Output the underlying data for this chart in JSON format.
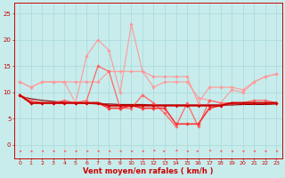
{
  "x": [
    0,
    1,
    2,
    3,
    4,
    5,
    6,
    7,
    8,
    9,
    10,
    11,
    12,
    13,
    14,
    15,
    16,
    17,
    18,
    19,
    20,
    21,
    22,
    23
  ],
  "series": [
    {
      "color": "#FF9999",
      "lw": 0.8,
      "marker": "D",
      "markersize": 1.8,
      "values": [
        12.0,
        11.0,
        12.0,
        12.0,
        12.0,
        12.0,
        12.0,
        12.0,
        14.0,
        14.0,
        14.0,
        14.0,
        13.0,
        13.0,
        13.0,
        13.0,
        8.0,
        11.0,
        11.0,
        11.0,
        10.5,
        12.0,
        13.0,
        13.5
      ]
    },
    {
      "color": "#FF9999",
      "lw": 0.8,
      "marker": "D",
      "markersize": 1.8,
      "values": [
        12.0,
        11.0,
        12.0,
        12.0,
        12.0,
        8.0,
        17.0,
        20.0,
        18.0,
        10.0,
        23.0,
        14.0,
        11.0,
        12.0,
        12.0,
        12.0,
        9.0,
        8.5,
        8.0,
        10.5,
        10.0,
        12.0,
        13.0,
        13.5
      ]
    },
    {
      "color": "#FF6666",
      "lw": 0.9,
      "marker": "D",
      "markersize": 1.8,
      "values": [
        9.5,
        8.5,
        8.0,
        8.0,
        8.5,
        8.0,
        8.5,
        15.0,
        14.0,
        7.0,
        7.0,
        9.5,
        8.0,
        6.0,
        3.5,
        8.0,
        3.5,
        8.5,
        8.0,
        8.0,
        8.0,
        8.5,
        8.5,
        8.0
      ]
    },
    {
      "color": "#FF3333",
      "lw": 1.2,
      "marker": "D",
      "markersize": 1.8,
      "values": [
        9.5,
        8.0,
        8.0,
        8.0,
        8.0,
        8.0,
        8.0,
        8.0,
        7.0,
        7.0,
        7.5,
        7.0,
        7.0,
        7.0,
        4.0,
        4.0,
        4.0,
        7.0,
        7.5,
        8.0,
        8.0,
        8.0,
        8.0,
        8.0
      ]
    },
    {
      "color": "#CC0000",
      "lw": 1.5,
      "marker": "D",
      "markersize": 1.5,
      "values": [
        9.5,
        8.0,
        8.0,
        8.0,
        8.0,
        8.0,
        8.0,
        8.0,
        7.5,
        7.5,
        7.5,
        7.5,
        7.5,
        7.5,
        7.5,
        7.5,
        7.5,
        7.5,
        7.5,
        8.0,
        8.0,
        8.0,
        8.0,
        8.0
      ]
    },
    {
      "color": "#880000",
      "lw": 0.8,
      "marker": null,
      "markersize": 0,
      "values": [
        9.3,
        8.8,
        8.5,
        8.3,
        8.1,
        8.0,
        7.9,
        7.8,
        7.8,
        7.7,
        7.7,
        7.7,
        7.6,
        7.6,
        7.6,
        7.6,
        7.6,
        7.6,
        7.6,
        7.6,
        7.7,
        7.7,
        7.7,
        7.8
      ]
    }
  ],
  "xlabel": "Vent moyen/en rafales ( km/h )",
  "xticks": [
    0,
    1,
    2,
    3,
    4,
    5,
    6,
    7,
    8,
    9,
    10,
    11,
    12,
    13,
    14,
    15,
    16,
    17,
    18,
    19,
    20,
    21,
    22,
    23
  ],
  "yticks": [
    0,
    5,
    10,
    15,
    20,
    25
  ],
  "ylim": [
    -2.5,
    27
  ],
  "xlim": [
    -0.5,
    23.5
  ],
  "bgcolor": "#C8ECEC",
  "grid_color": "#A8D8D8",
  "label_color": "#CC0000",
  "arrow_color": "#FF5555",
  "arrow_directions": [
    2,
    2,
    2,
    2,
    2,
    2,
    2,
    2,
    2,
    2,
    2,
    2,
    0,
    1,
    0,
    2,
    1,
    0,
    2,
    2,
    2,
    2,
    2,
    2
  ]
}
